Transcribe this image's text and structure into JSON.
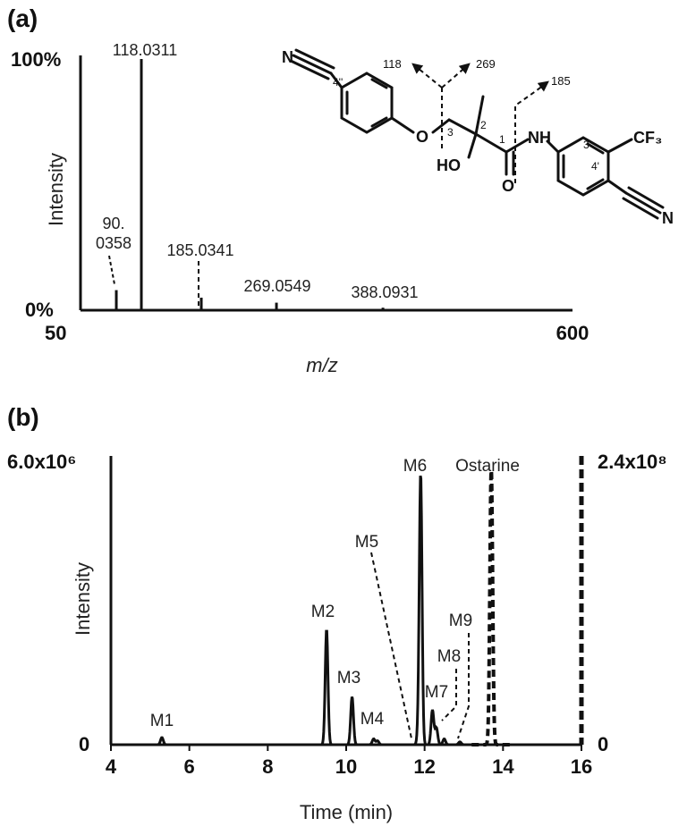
{
  "chart_data": [
    {
      "type": "spectrum",
      "panel_label": "(a)",
      "xlabel": "m/z",
      "ylabel": "Intensity",
      "xlim": [
        50,
        600
      ],
      "ylim": [
        0,
        100
      ],
      "x_tick_labels": [
        "50",
        "600"
      ],
      "y_tick_labels": [
        "0%",
        "100%"
      ],
      "peaks": [
        {
          "mz": 90.0358,
          "label": "90.\n0358",
          "intensity": 8,
          "style": "solid"
        },
        {
          "mz": 118.0311,
          "label": "118.0311",
          "intensity": 100,
          "style": "solid"
        },
        {
          "mz": 185.0341,
          "label": "185.0341",
          "intensity": 5,
          "style": "solid"
        },
        {
          "mz": 269.0549,
          "label": "269.0549",
          "intensity": 3,
          "style": "solid"
        },
        {
          "mz": 388.0931,
          "label": "388.0931",
          "intensity": 1,
          "style": "solid"
        }
      ],
      "structure_labels": {
        "nitrile_left": "N",
        "pos_4pp": "4''",
        "oxygen": "O",
        "c3": "3",
        "c2": "2",
        "c1": "1",
        "hydroxyl": "HO",
        "carbonyl_o": "O",
        "amide": "NH",
        "pos_3p": "3'",
        "pos_4p": "4'",
        "cf3": "CF₃",
        "nitrile_right": "N",
        "frag_118": "118",
        "frag_269": "269",
        "frag_185": "185"
      }
    },
    {
      "type": "line",
      "panel_label": "(b)",
      "xlabel": "Time (min)",
      "ylabel": "Intensity",
      "xlim": [
        4,
        16
      ],
      "x_ticks": [
        4,
        6,
        8,
        10,
        12,
        14,
        16
      ],
      "y_left_max_label": "6.0x10⁶",
      "y_left_min_label": "0",
      "y_right_max_label": "2.4x10⁸",
      "y_right_min_label": "0",
      "ylim_left": [
        0,
        6000000
      ],
      "ylim_right": [
        0,
        240000000
      ],
      "series": [
        {
          "axis": "left",
          "style": "solid",
          "peaks": [
            {
              "name": "M1",
              "rt": 5.3,
              "height": 150000
            },
            {
              "name": "M2",
              "rt": 9.5,
              "height": 2400000
            },
            {
              "name": "M3",
              "rt": 10.15,
              "height": 1000000
            },
            {
              "name": "M4",
              "rt": 10.7,
              "height": 120000
            },
            {
              "name": "M4",
              "rt": 10.8,
              "height": 80000
            },
            {
              "name": "M5",
              "rt": 11.85,
              "height": 300000
            },
            {
              "name": "M6",
              "rt": 11.9,
              "height": 5550000
            },
            {
              "name": "M7",
              "rt": 12.2,
              "height": 720000
            },
            {
              "name": "M7",
              "rt": 12.3,
              "height": 350000
            },
            {
              "name": "M8",
              "rt": 12.5,
              "height": 120000
            },
            {
              "name": "M9",
              "rt": 12.9,
              "height": 60000
            }
          ]
        },
        {
          "axis": "right",
          "style": "dashed",
          "peaks": [
            {
              "name": "Ostarine",
              "rt": 13.7,
              "height": 228000000
            }
          ]
        }
      ],
      "annotations": [
        "M1",
        "M2",
        "M3",
        "M4",
        "M5",
        "M6",
        "M7",
        "M8",
        "M9",
        "Ostarine"
      ]
    }
  ]
}
